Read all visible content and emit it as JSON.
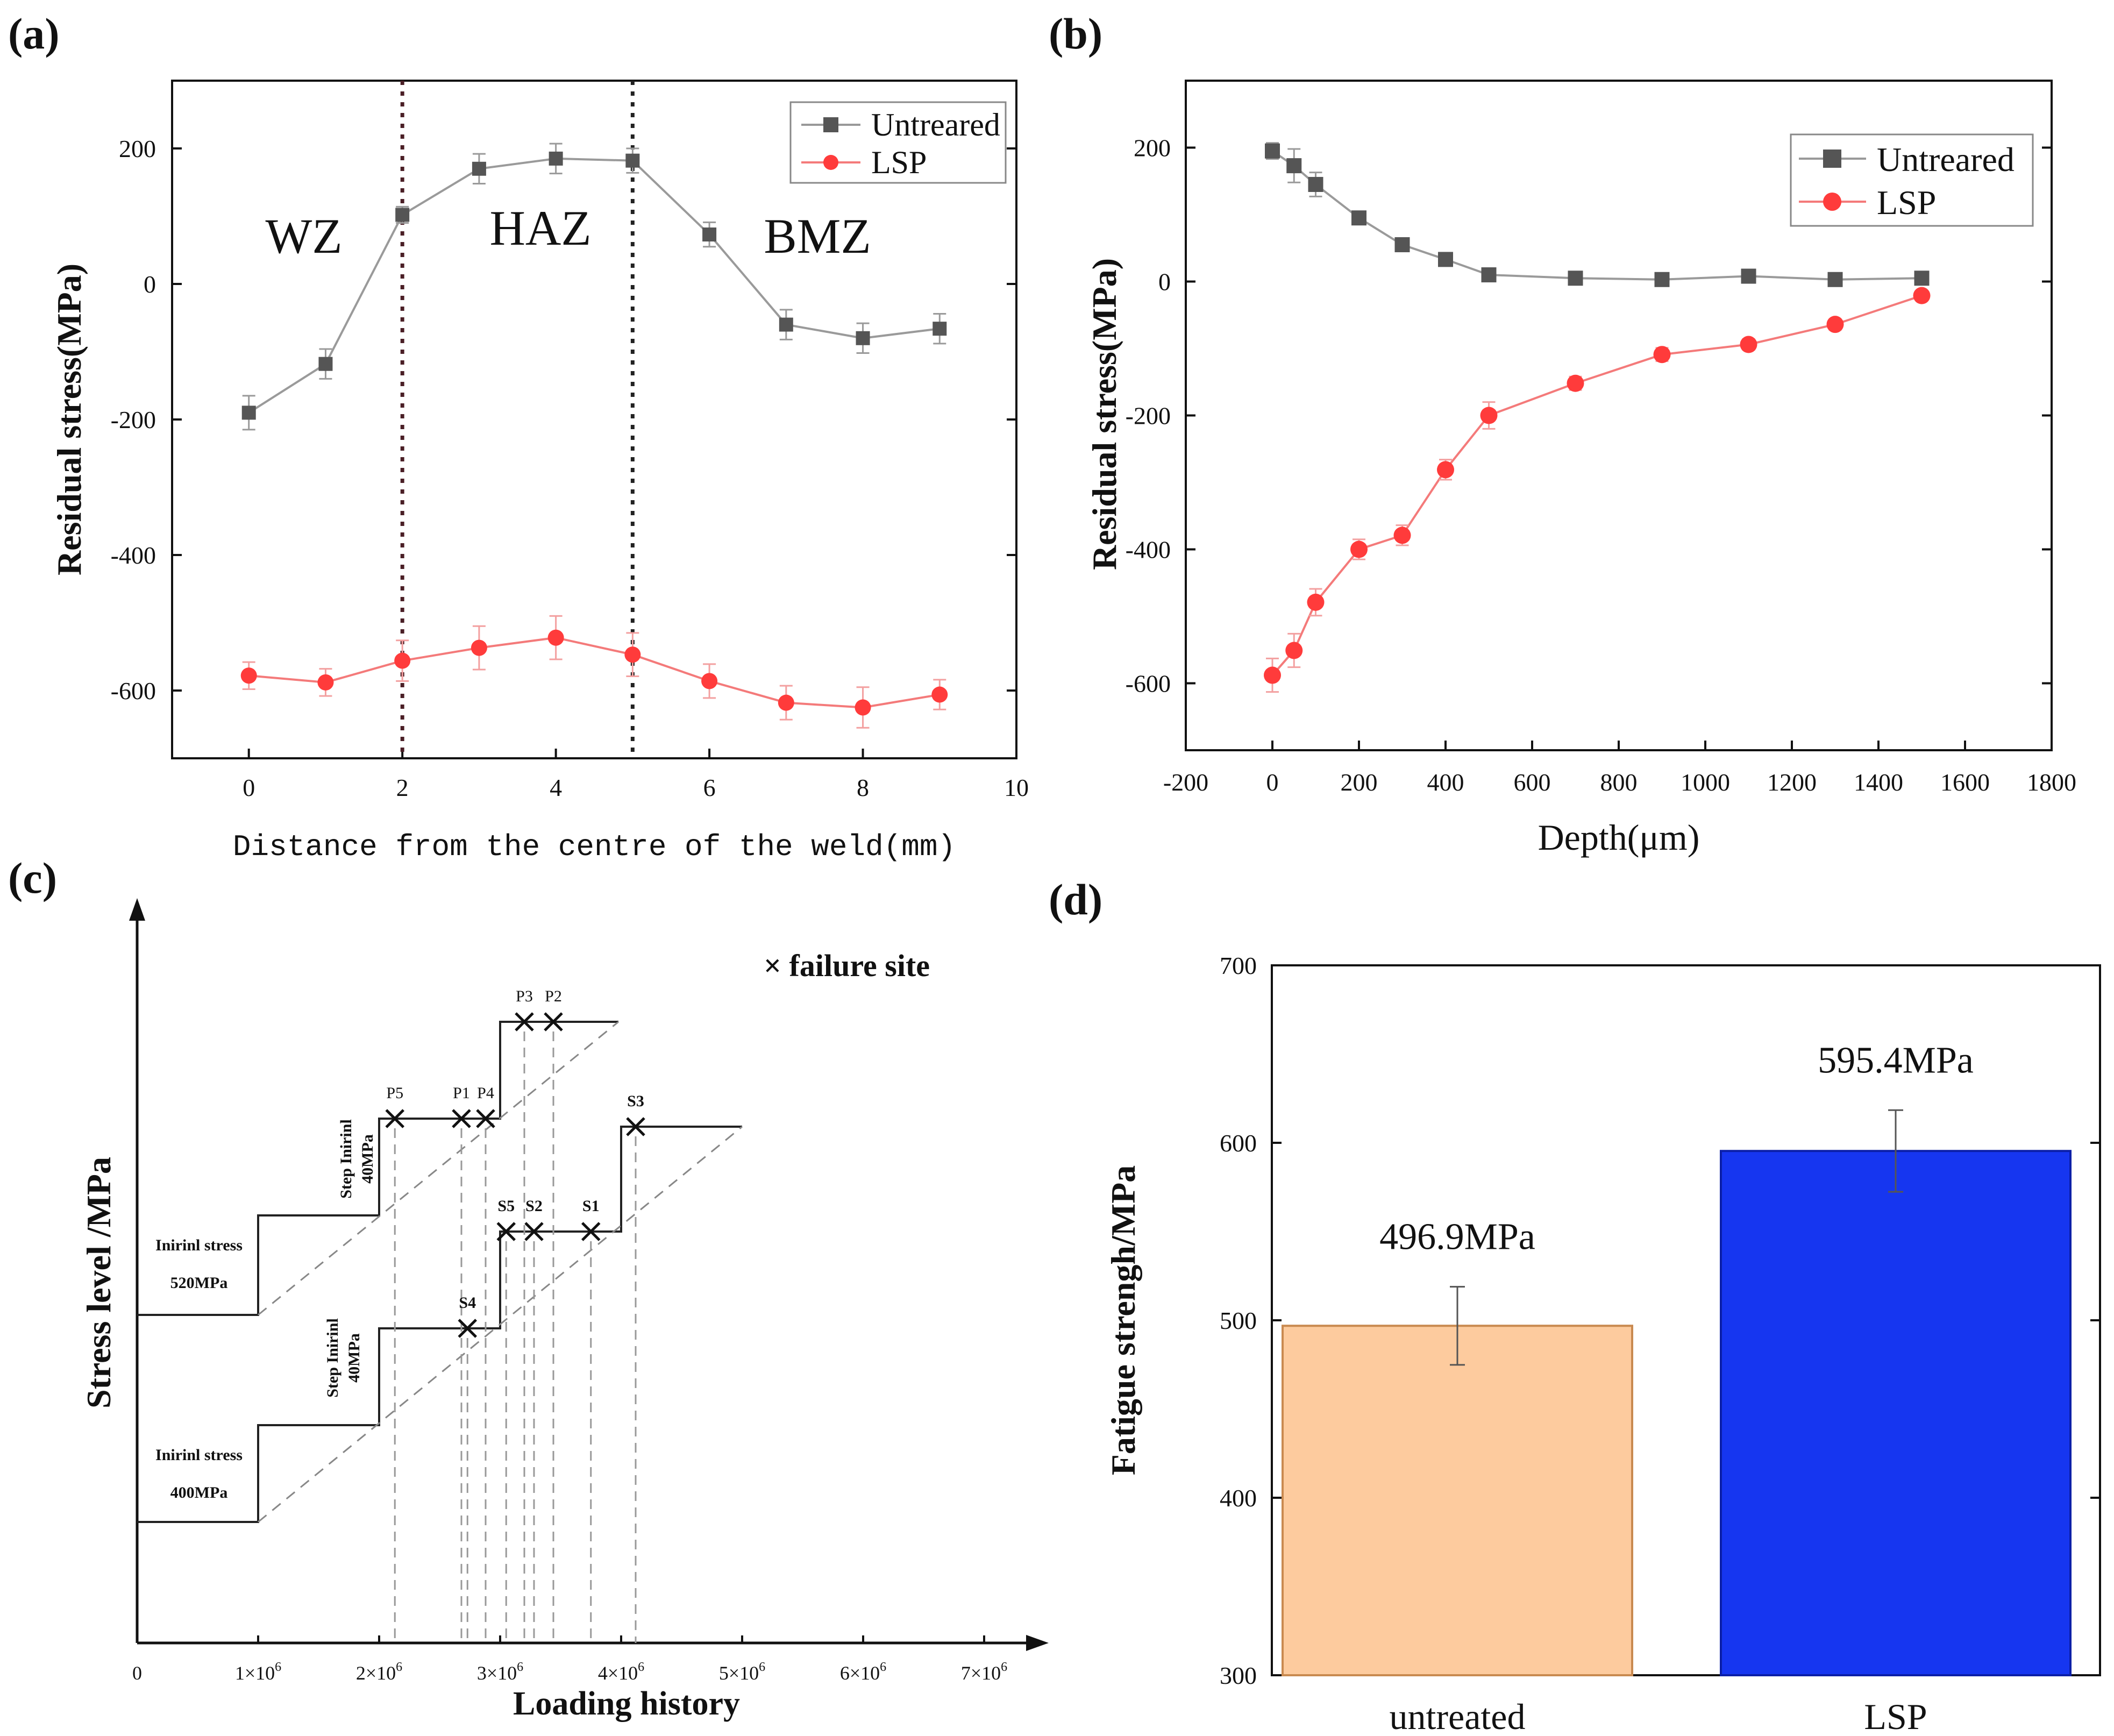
{
  "colors": {
    "untreated": "#555555",
    "untreated_err": "#9a9a9a",
    "lsp": "#ff3b3b",
    "lsp_line": "#f47a7a",
    "lsp_err": "#f3a0a0",
    "bar_untreated": "#fdcb9e",
    "bar_untreated_edge": "#c98a50",
    "bar_lsp": "#1636f0",
    "bar_lsp_edge": "#0b1fa8",
    "axis": "#111111"
  },
  "chart_data": [
    {
      "panel": "(a)",
      "type": "line",
      "xlabel": "Distance from the centre of the weld(mm)",
      "ylabel": "Residual stress(MPa)",
      "xlim": [
        -1,
        10
      ],
      "ylim": [
        -700,
        300
      ],
      "xticks": [
        0,
        2,
        4,
        6,
        8,
        10
      ],
      "yticks": [
        -600,
        -400,
        -200,
        0,
        200
      ],
      "x": [
        0,
        1,
        2,
        3,
        4,
        5,
        6,
        7,
        8,
        9
      ],
      "series": [
        {
          "name": "Untreared",
          "values": [
            -190,
            -118,
            102,
            170,
            185,
            182,
            73,
            -60,
            -80,
            -66
          ],
          "errors": [
            25,
            22,
            12,
            22,
            22,
            18,
            18,
            22,
            22,
            22
          ]
        },
        {
          "name": "LSP",
          "values": [
            -578,
            -588,
            -556,
            -537,
            -522,
            -547,
            -586,
            -618,
            -625,
            -606
          ],
          "errors": [
            20,
            20,
            30,
            32,
            32,
            32,
            25,
            25,
            30,
            22
          ]
        }
      ],
      "vlines": [
        2,
        5
      ],
      "zones": [
        "WZ",
        "HAZ",
        "BMZ"
      ],
      "legend": "top-right"
    },
    {
      "panel": "(b)",
      "type": "line",
      "xlabel": "Depth(μm)",
      "ylabel": "Residual stress(MPa)",
      "xlim": [
        -200,
        1800
      ],
      "ylim": [
        -700,
        300
      ],
      "xticks": [
        -200,
        0,
        200,
        400,
        600,
        800,
        1000,
        1200,
        1400,
        1600,
        1800
      ],
      "yticks": [
        -600,
        -400,
        -200,
        0,
        200
      ],
      "series": [
        {
          "name": "Untreared",
          "x": [
            0,
            50,
            100,
            200,
            300,
            400,
            500,
            700,
            900,
            1100,
            1300,
            1500
          ],
          "values": [
            195,
            173,
            145,
            95,
            55,
            33,
            10,
            5,
            3,
            8,
            3,
            5
          ],
          "errors": [
            12,
            25,
            18,
            8,
            6,
            6,
            6,
            6,
            6,
            6,
            6,
            6
          ]
        },
        {
          "name": "LSP",
          "x": [
            0,
            50,
            100,
            200,
            300,
            400,
            500,
            700,
            900,
            1100,
            1300,
            1500
          ],
          "values": [
            -588,
            -551,
            -479,
            -400,
            -379,
            -281,
            -200,
            -152,
            -109,
            -94,
            -64,
            -21
          ],
          "errors": [
            25,
            25,
            20,
            15,
            15,
            15,
            20,
            10,
            10,
            8,
            8,
            6
          ]
        }
      ],
      "legend": "top-right"
    },
    {
      "panel": "(c)",
      "type": "diagram",
      "xlabel": "Loading history",
      "ylabel": "Stress level /MPa",
      "xtick_origin": "0",
      "xtick_base": "×10",
      "xtick_exp": "6",
      "xtick_mantissas": [
        "1",
        "2",
        "3",
        "4",
        "5",
        "6",
        "7"
      ],
      "legend": "× failure site",
      "upper_start": "Inirinl stress",
      "upper_start_value": "520MPa",
      "upper_step_line1": "Step Inirinl",
      "upper_step_line2": "40MPa",
      "lower_start": "Inirinl stress",
      "lower_start_value": "400MPa",
      "lower_step_line1": "Step Inirinl",
      "lower_step_line2": "40MPa",
      "points_p": [
        {
          "label": "P5",
          "x": 2.13
        },
        {
          "label": "P1",
          "x": 2.68
        },
        {
          "label": "P4",
          "x": 2.88
        },
        {
          "label": "P3",
          "x": 3.2
        },
        {
          "label": "P2",
          "x": 3.44
        }
      ],
      "points_s": [
        {
          "label": "S4",
          "x": 2.73
        },
        {
          "label": "S5",
          "x": 3.05
        },
        {
          "label": "S2",
          "x": 3.28
        },
        {
          "label": "S1",
          "x": 3.75
        },
        {
          "label": "S3",
          "x": 4.12
        }
      ]
    },
    {
      "panel": "(d)",
      "type": "bar",
      "ylabel": "Fatigue strengh/MPa",
      "ylim": [
        300,
        700
      ],
      "yticks": [
        300,
        400,
        500,
        600,
        700
      ],
      "categories": [
        "untreated",
        "LSP"
      ],
      "values": [
        496.9,
        595.4
      ],
      "errors": [
        22,
        23
      ],
      "data_labels": [
        "496.9MPa",
        "595.4MPa"
      ]
    }
  ]
}
